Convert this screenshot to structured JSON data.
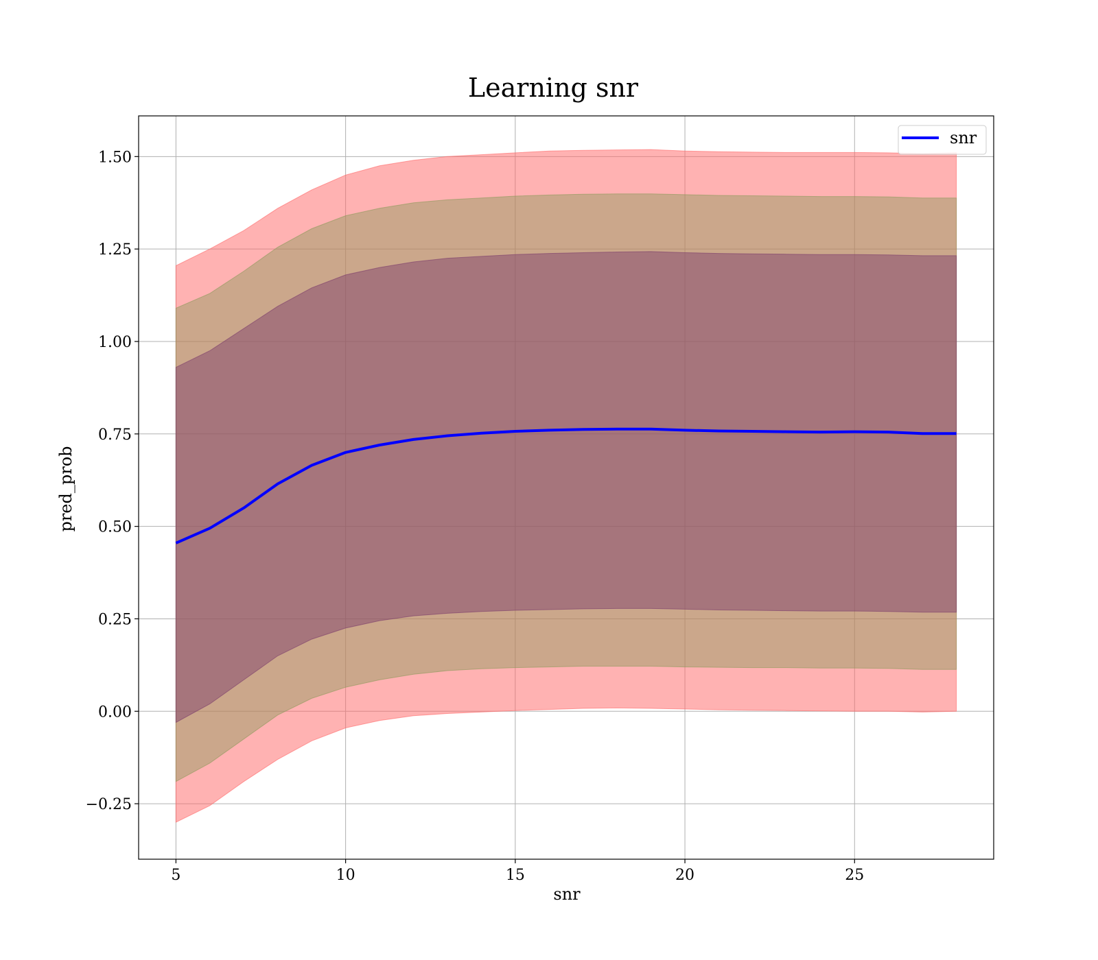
{
  "chart_data": {
    "type": "line",
    "title": "Learning snr",
    "xlabel": "snr",
    "ylabel": "pred_prob",
    "xlim": [
      3.9,
      29.1
    ],
    "ylim": [
      -0.4,
      1.61
    ],
    "xticks": [
      5,
      10,
      15,
      20,
      25
    ],
    "xtick_labels": [
      "5",
      "10",
      "15",
      "20",
      "25"
    ],
    "yticks": [
      -0.25,
      0.0,
      0.25,
      0.5,
      0.75,
      1.0,
      1.25,
      1.5
    ],
    "ytick_labels": [
      "−0.25",
      "0.00",
      "0.25",
      "0.50",
      "0.75",
      "1.00",
      "1.25",
      "1.50"
    ],
    "grid": true,
    "legend": {
      "placement": "top-right",
      "entries": [
        "snr"
      ]
    },
    "x": [
      5,
      6,
      7,
      8,
      9,
      10,
      11,
      12,
      13,
      14,
      15,
      16,
      17,
      18,
      19,
      20,
      21,
      22,
      23,
      24,
      25,
      26,
      27,
      28
    ],
    "series": [
      {
        "name": "snr",
        "color": "#0000ff",
        "values": [
          0.455,
          0.495,
          0.55,
          0.615,
          0.665,
          0.7,
          0.72,
          0.735,
          0.745,
          0.752,
          0.757,
          0.76,
          0.762,
          0.763,
          0.763,
          0.76,
          0.758,
          0.757,
          0.756,
          0.755,
          0.756,
          0.755,
          0.751,
          0.751
        ]
      }
    ],
    "bands": [
      {
        "fill": "#ff6666",
        "opacity": 0.5,
        "lower": [
          -0.3,
          -0.255,
          -0.19,
          -0.13,
          -0.08,
          -0.045,
          -0.025,
          -0.012,
          -0.006,
          -0.002,
          0.002,
          0.005,
          0.008,
          0.009,
          0.008,
          0.006,
          0.004,
          0.003,
          0.002,
          0.001,
          0.0,
          0.0,
          -0.002,
          0.0
        ],
        "upper": [
          1.205,
          1.25,
          1.3,
          1.36,
          1.41,
          1.45,
          1.475,
          1.49,
          1.5,
          1.505,
          1.51,
          1.515,
          1.517,
          1.518,
          1.519,
          1.515,
          1.513,
          1.512,
          1.511,
          1.511,
          1.511,
          1.51,
          1.508,
          1.51
        ]
      },
      {
        "fill": "#8b9a5a",
        "opacity": 0.45,
        "lower": [
          -0.19,
          -0.14,
          -0.075,
          -0.01,
          0.035,
          0.065,
          0.085,
          0.1,
          0.11,
          0.115,
          0.118,
          0.12,
          0.122,
          0.122,
          0.122,
          0.12,
          0.119,
          0.118,
          0.118,
          0.117,
          0.117,
          0.116,
          0.113,
          0.113
        ],
        "upper": [
          1.09,
          1.13,
          1.19,
          1.255,
          1.305,
          1.34,
          1.36,
          1.375,
          1.383,
          1.388,
          1.393,
          1.396,
          1.398,
          1.399,
          1.399,
          1.397,
          1.395,
          1.394,
          1.393,
          1.392,
          1.392,
          1.391,
          1.388,
          1.388
        ]
      },
      {
        "fill": "#7a3a6a",
        "opacity": 0.45,
        "lower": [
          -0.03,
          0.02,
          0.085,
          0.15,
          0.195,
          0.225,
          0.245,
          0.258,
          0.265,
          0.27,
          0.273,
          0.275,
          0.277,
          0.278,
          0.278,
          0.276,
          0.274,
          0.273,
          0.272,
          0.271,
          0.271,
          0.27,
          0.268,
          0.268
        ],
        "upper": [
          0.93,
          0.975,
          1.035,
          1.095,
          1.145,
          1.18,
          1.2,
          1.215,
          1.225,
          1.23,
          1.235,
          1.238,
          1.24,
          1.242,
          1.243,
          1.24,
          1.238,
          1.237,
          1.236,
          1.235,
          1.235,
          1.234,
          1.232,
          1.232
        ]
      }
    ]
  }
}
